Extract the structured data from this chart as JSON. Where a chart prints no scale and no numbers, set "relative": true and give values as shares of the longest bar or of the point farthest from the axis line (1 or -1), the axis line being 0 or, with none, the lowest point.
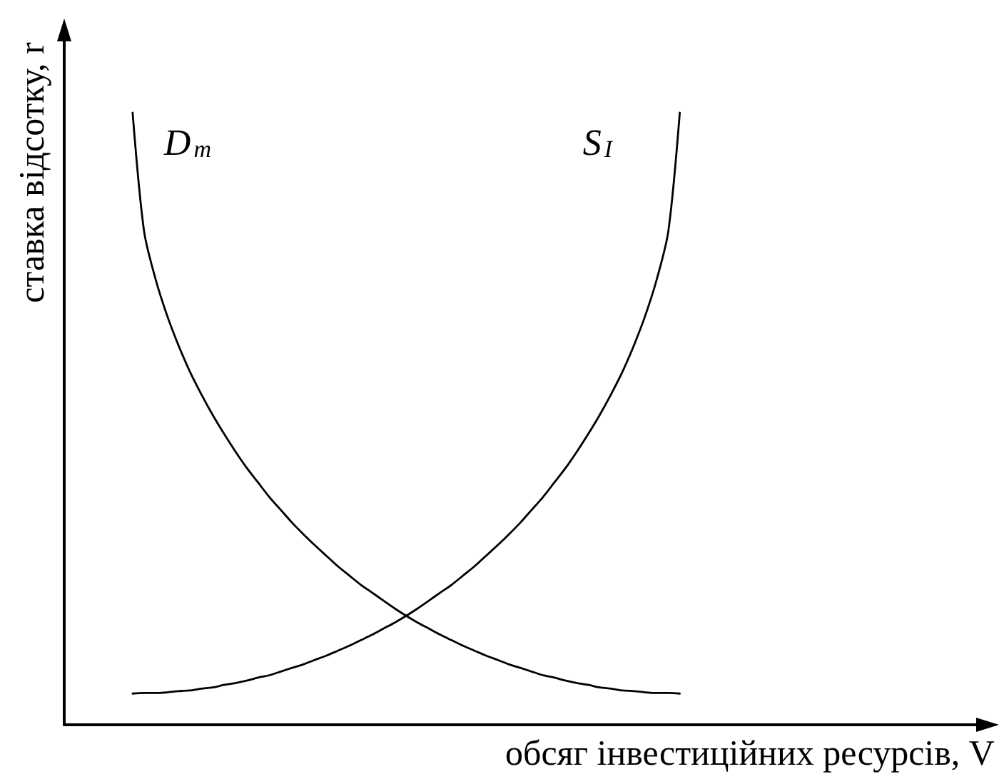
{
  "chart_data": {
    "type": "line",
    "relative": true,
    "xlabel": "обсяг інвестиційних ресурсів, V",
    "ylabel": "ставка відсотку, r",
    "categories": [
      null,
      null,
      null,
      null,
      null,
      null,
      null,
      null,
      null,
      null,
      null,
      null,
      null,
      null,
      null,
      null,
      null,
      null,
      null,
      null,
      null,
      null,
      null,
      null,
      null,
      null,
      null,
      null,
      null,
      null,
      null,
      null,
      null,
      null,
      null,
      null,
      null,
      null,
      null,
      null,
      null,
      null,
      null,
      null,
      null,
      null,
      null,
      null,
      null,
      null,
      null,
      null,
      null,
      null,
      null,
      null,
      null,
      null,
      null,
      null,
      null,
      null,
      null,
      null,
      null,
      null,
      null,
      null,
      null,
      null,
      null,
      null,
      null,
      null,
      null,
      null,
      null,
      null,
      null,
      null,
      null
    ],
    "series": [
      {
        "name": "D$_{m}$",
        "color": "#000000",
        "values": [
          null,
          null,
          null,
          null,
          null,
          null,
          1,
          0.807,
          0.729,
          0.67,
          0.621,
          0.578,
          0.541,
          0.507,
          0.476,
          0.447,
          0.42,
          0.396,
          0.372,
          0.351,
          0.33,
          0.311,
          0.293,
          0.276,
          0.259,
          0.244,
          0.229,
          0.216,
          0.203,
          0.19,
          0.178,
          0.167,
          0.157,
          0.147,
          0.138,
          0.129,
          0.121,
          0.113,
          0.106,
          0.099,
          0.093,
          0.087,
          0.081,
          0.077,
          0.072,
          0.068,
          0.065,
          0.061,
          0.059,
          0.056,
          0.055,
          0.053,
          0.052,
          0.052,
          0.051,
          null,
          null,
          null,
          null,
          null,
          null,
          null,
          null,
          null,
          null,
          null,
          null,
          null,
          null,
          null,
          null,
          null,
          null,
          null,
          null,
          null,
          null,
          null,
          null,
          null,
          null
        ]
      },
      {
        "name": "S$_{I}$",
        "color": "#000000",
        "values": [
          null,
          null,
          null,
          null,
          null,
          null,
          0.051,
          0.052,
          0.052,
          0.053,
          0.055,
          0.056,
          0.059,
          0.061,
          0.065,
          0.068,
          0.072,
          0.077,
          0.081,
          0.087,
          0.093,
          0.099,
          0.106,
          0.113,
          0.121,
          0.129,
          0.138,
          0.147,
          0.157,
          0.167,
          0.178,
          0.19,
          0.203,
          0.216,
          0.229,
          0.244,
          0.259,
          0.276,
          0.293,
          0.311,
          0.33,
          0.351,
          0.372,
          0.396,
          0.42,
          0.447,
          0.476,
          0.507,
          0.541,
          0.578,
          0.621,
          0.67,
          0.729,
          0.807,
          1,
          null,
          null,
          null,
          null,
          null,
          null,
          null,
          null,
          null,
          null,
          null,
          null,
          null,
          null,
          null,
          null,
          null,
          null,
          null,
          null,
          null,
          null,
          null,
          null,
          null,
          null
        ]
      }
    ],
    "grid": false,
    "legend": false,
    "marker": "none",
    "line_style": "solid"
  }
}
